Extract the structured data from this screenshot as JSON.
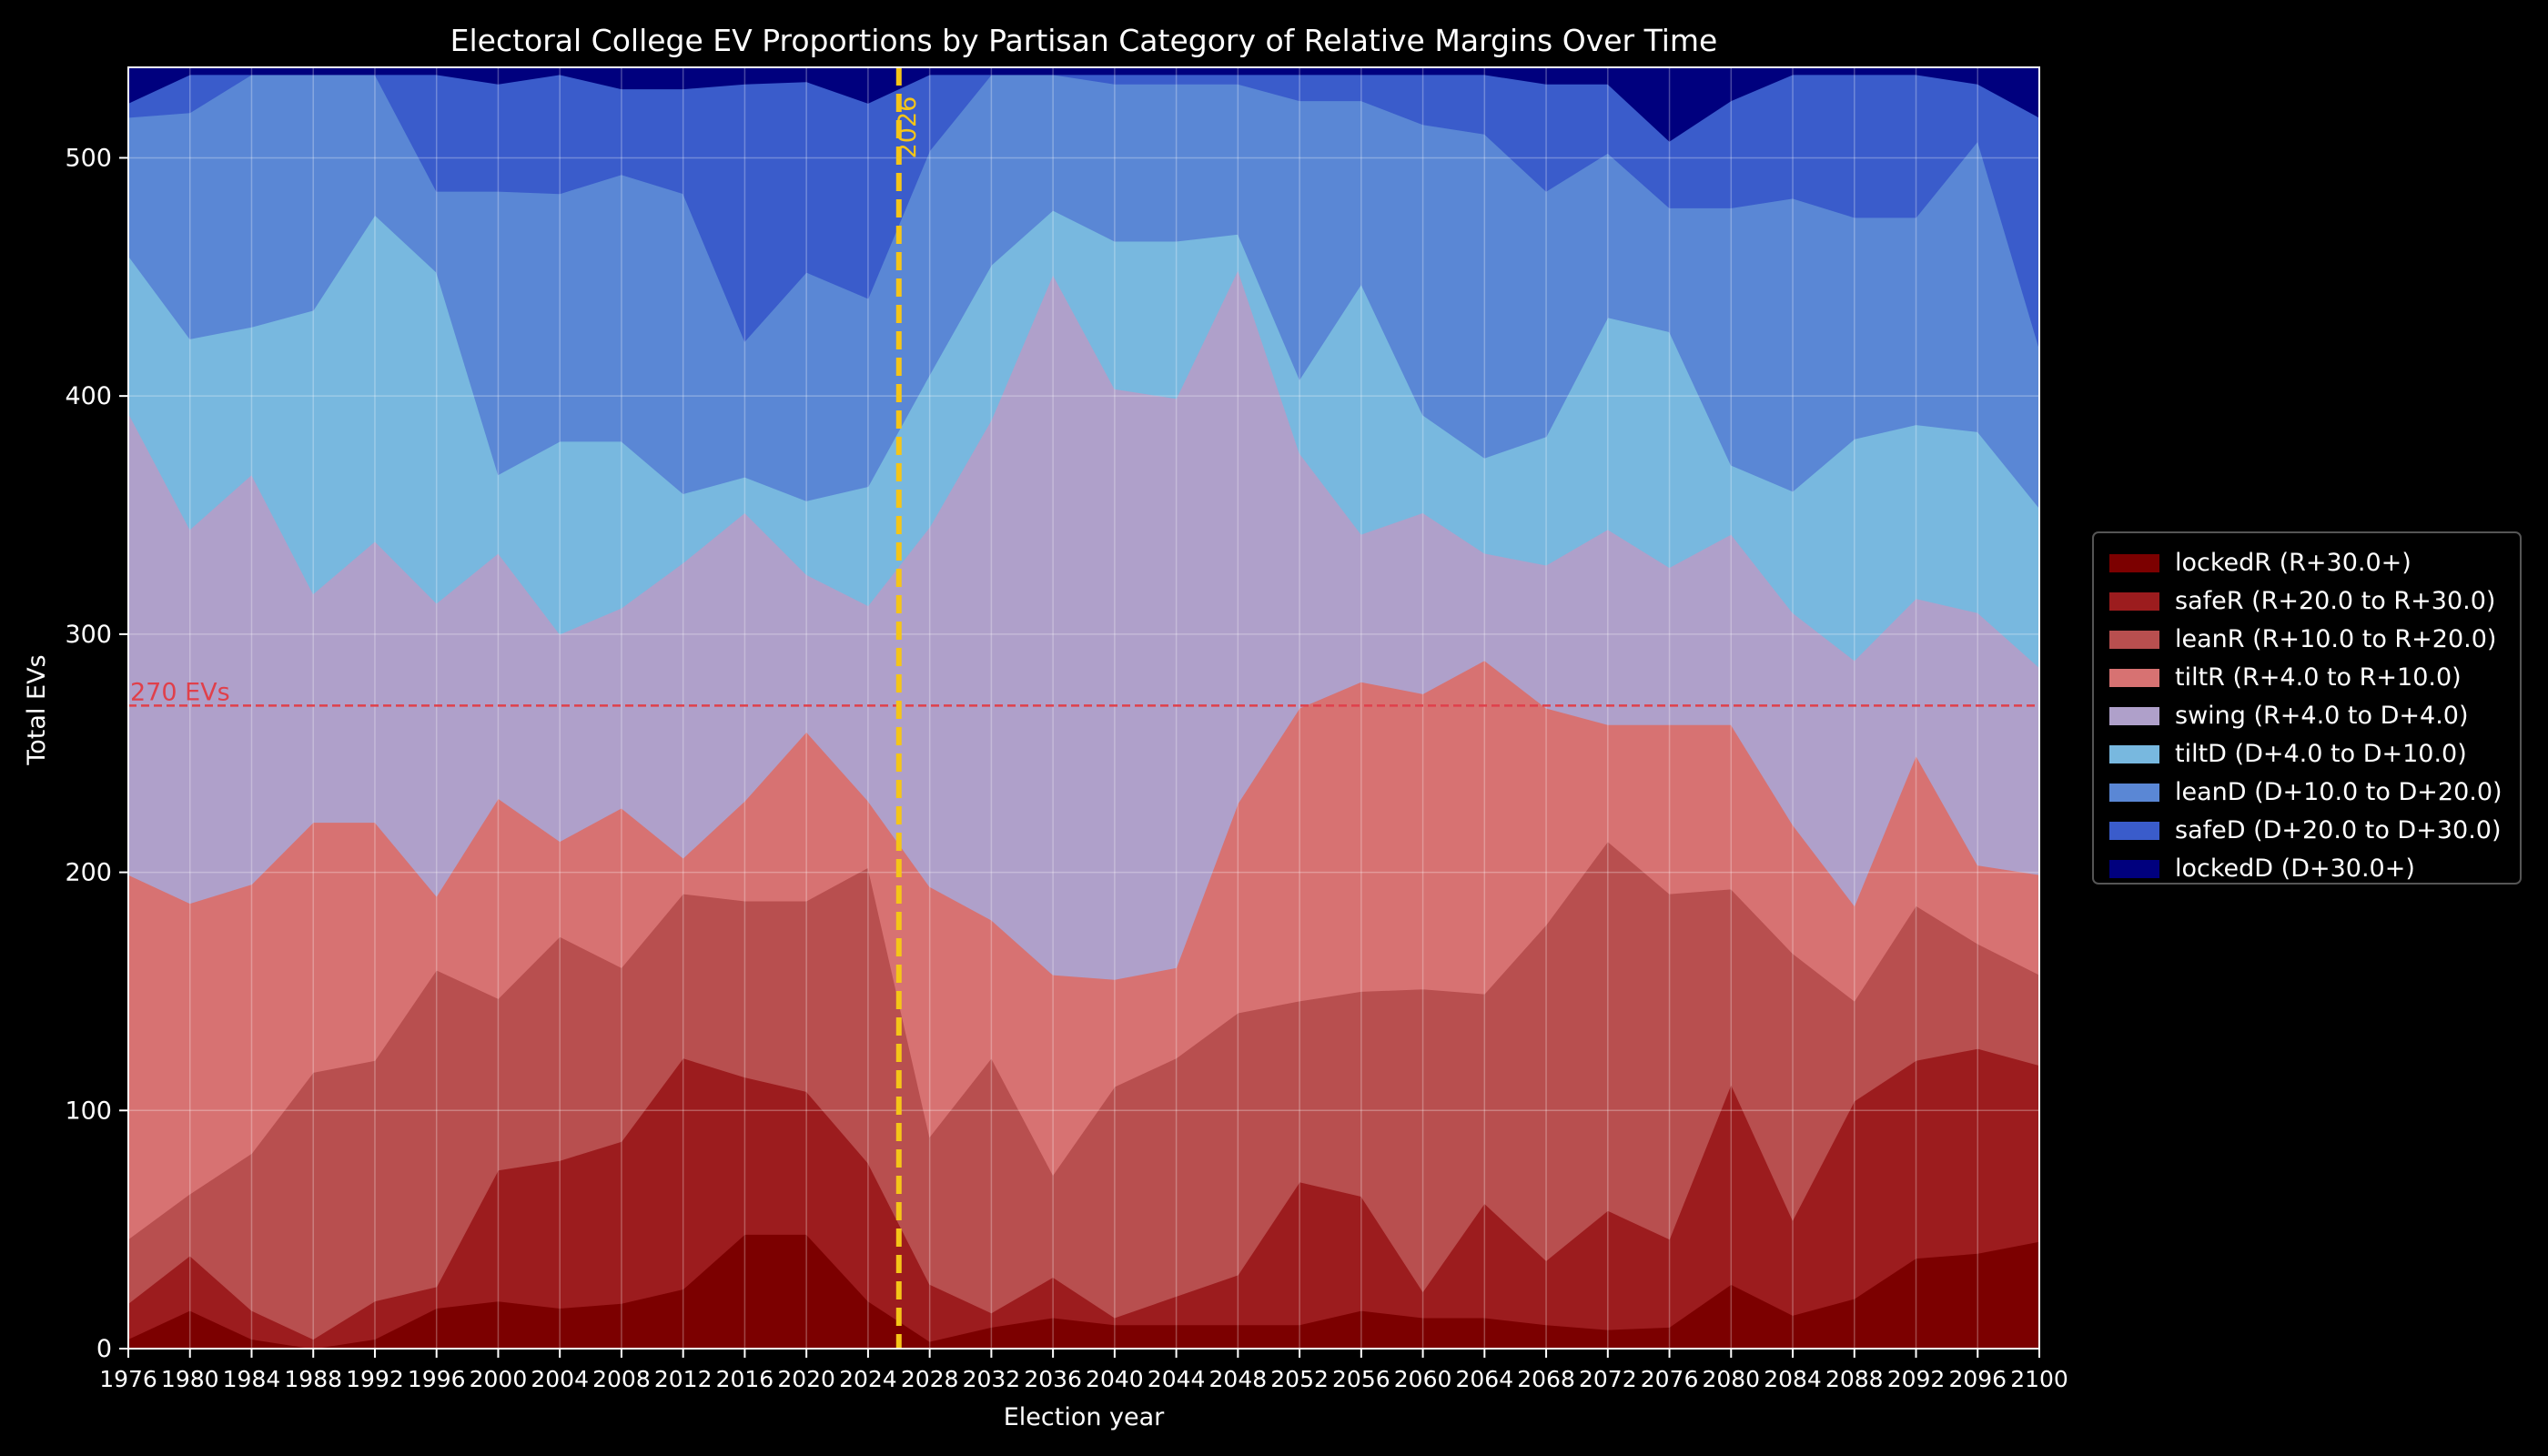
{
  "chart_data": {
    "type": "area",
    "stacked": true,
    "title": "Electoral College EV Proportions by Partisan Category of Relative Margins Over Time",
    "xlabel": "Election year",
    "ylabel": "Total EVs",
    "xlim": [
      1976,
      2100
    ],
    "ylim": [
      0,
      538
    ],
    "yticks": [
      0,
      100,
      200,
      300,
      400,
      500
    ],
    "grid": true,
    "legend_position": "right",
    "x": [
      1976,
      1980,
      1984,
      1988,
      1992,
      1996,
      2000,
      2004,
      2008,
      2012,
      2016,
      2020,
      2024,
      2028,
      2032,
      2036,
      2040,
      2044,
      2048,
      2052,
      2056,
      2060,
      2064,
      2068,
      2072,
      2076,
      2080,
      2084,
      2088,
      2092,
      2096,
      2100
    ],
    "cumulative_tops": {
      "lockedR": [
        4,
        16,
        4,
        0,
        4,
        17,
        20,
        17,
        19,
        25,
        48,
        48,
        20,
        3,
        9,
        13,
        10,
        10,
        10,
        10,
        16,
        13,
        13,
        10,
        8,
        9,
        27,
        14,
        21,
        38,
        40,
        45
      ],
      "safeR": [
        19,
        39,
        16,
        4,
        20,
        26,
        75,
        79,
        87,
        122,
        114,
        108,
        78,
        27,
        15,
        30,
        13,
        22,
        31,
        70,
        64,
        24,
        61,
        37,
        58,
        46,
        111,
        54,
        104,
        121,
        126,
        119
      ],
      "leanR": [
        46,
        65,
        82,
        116,
        121,
        159,
        147,
        173,
        160,
        191,
        188,
        188,
        202,
        89,
        122,
        73,
        110,
        122,
        141,
        146,
        150,
        151,
        149,
        178,
        213,
        191,
        193,
        166,
        146,
        186,
        170,
        157
      ],
      "tiltR": [
        199,
        187,
        195,
        221,
        221,
        190,
        231,
        213,
        227,
        206,
        230,
        259,
        230,
        194,
        180,
        157,
        155,
        160,
        229,
        269,
        280,
        275,
        289,
        269,
        262,
        262,
        262,
        220,
        186,
        249,
        203,
        199
      ],
      "swing": [
        393,
        344,
        367,
        317,
        339,
        313,
        334,
        300,
        311,
        330,
        351,
        325,
        312,
        345,
        390,
        451,
        403,
        399,
        453,
        376,
        342,
        351,
        334,
        329,
        344,
        328,
        342,
        309,
        289,
        315,
        309,
        286
      ],
      "tiltD": [
        459,
        424,
        429,
        436,
        476,
        452,
        367,
        381,
        381,
        359,
        366,
        356,
        362,
        409,
        455,
        478,
        465,
        465,
        468,
        407,
        447,
        392,
        374,
        383,
        433,
        427,
        371,
        360,
        382,
        388,
        385,
        353
      ],
      "leanD": [
        517,
        519,
        535,
        535,
        535,
        486,
        486,
        485,
        493,
        485,
        423,
        452,
        441,
        503,
        535,
        535,
        531,
        531,
        531,
        524,
        524,
        514,
        510,
        486,
        502,
        479,
        479,
        483,
        475,
        475,
        507,
        420
      ],
      "safeD": [
        523,
        535,
        535,
        535,
        535,
        535,
        531,
        535,
        529,
        529,
        531,
        532,
        523,
        535,
        535,
        535,
        535,
        535,
        535,
        535,
        535,
        535,
        535,
        531,
        531,
        507,
        524,
        535,
        535,
        535,
        531,
        517
      ],
      "lockedD": [
        538,
        538,
        538,
        538,
        538,
        538,
        538,
        538,
        538,
        538,
        538,
        538,
        538,
        538,
        538,
        538,
        538,
        538,
        538,
        538,
        538,
        538,
        538,
        538,
        538,
        538,
        538,
        538,
        538,
        538,
        538,
        538
      ]
    },
    "series": [
      {
        "key": "lockedR",
        "name": "lockedR (R+30.0+)",
        "color": "#7c0000"
      },
      {
        "key": "safeR",
        "name": "safeR (R+20.0 to R+30.0)",
        "color": "#9c1c1e"
      },
      {
        "key": "leanR",
        "name": "leanR (R+10.0 to R+20.0)",
        "color": "#b84f4f"
      },
      {
        "key": "tiltR",
        "name": "tiltR (R+4.0 to R+10.0)",
        "color": "#d77272"
      },
      {
        "key": "swing",
        "name": "swing (R+4.0 to D+4.0)",
        "color": "#afa0ca"
      },
      {
        "key": "tiltD",
        "name": "tiltD (D+4.0 to D+10.0)",
        "color": "#78b8df"
      },
      {
        "key": "leanD",
        "name": "leanD (D+10.0 to D+20.0)",
        "color": "#5a87d5"
      },
      {
        "key": "safeD",
        "name": "safeD (D+20.0 to D+30.0)",
        "color": "#3a5ccb"
      },
      {
        "key": "lockedD",
        "name": "lockedD (D+30.0+)",
        "color": "#00007e"
      }
    ],
    "annotations": [
      {
        "type": "hline",
        "y": 270,
        "label": "270 EVs",
        "color": "#e0404b"
      },
      {
        "type": "vline",
        "x": 2026,
        "label": "2026",
        "color": "#f5c518"
      }
    ]
  }
}
